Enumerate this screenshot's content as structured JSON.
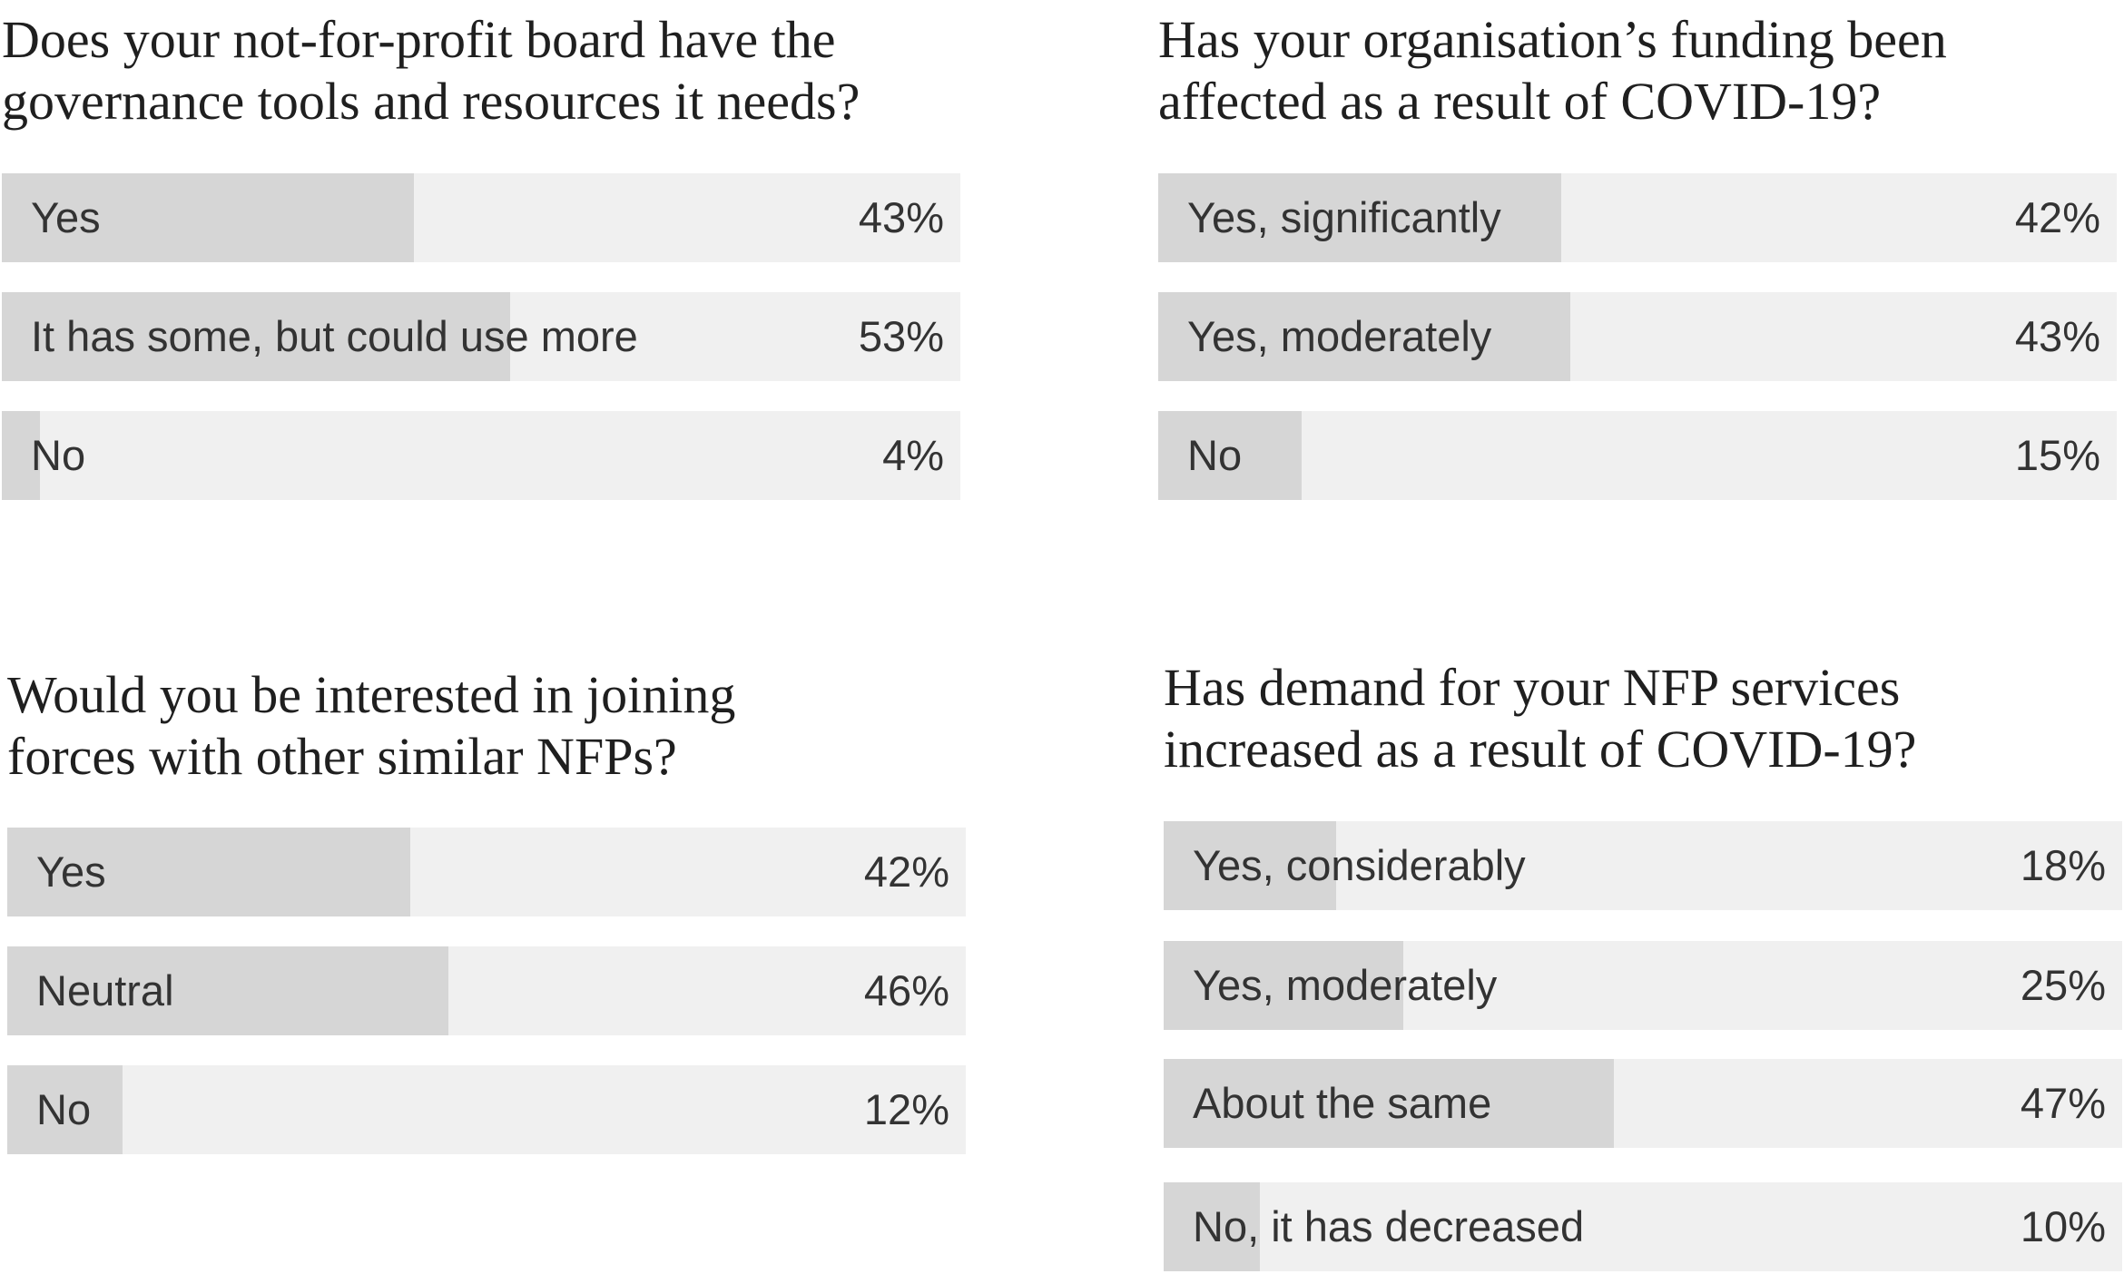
{
  "chart_data": [
    {
      "type": "bar",
      "orientation": "horizontal",
      "title": "Does your not-for-profit board have the\ngovernance tools and resources it needs?",
      "categories": [
        "Yes",
        "It has some, but could use more",
        "No"
      ],
      "values": [
        43,
        53,
        4
      ],
      "value_labels": [
        "43%",
        "53%",
        "4%"
      ],
      "xlim": [
        0,
        100
      ]
    },
    {
      "type": "bar",
      "orientation": "horizontal",
      "title": "Has your organisation’s funding been\naffected as a result of COVID-19?",
      "categories": [
        "Yes, significantly",
        "Yes, moderately",
        "No"
      ],
      "values": [
        42,
        43,
        15
      ],
      "value_labels": [
        "42%",
        "43%",
        "15%"
      ],
      "xlim": [
        0,
        100
      ]
    },
    {
      "type": "bar",
      "orientation": "horizontal",
      "title": "Would you be interested in joining\nforces with other similar NFPs?",
      "categories": [
        "Yes",
        "Neutral",
        "No"
      ],
      "values": [
        42,
        46,
        12
      ],
      "value_labels": [
        "42%",
        "46%",
        "12%"
      ],
      "xlim": [
        0,
        100
      ]
    },
    {
      "type": "bar",
      "orientation": "horizontal",
      "title": "Has demand for your NFP services\nincreased as a result of COVID-19?",
      "categories": [
        "Yes, considerably",
        "Yes, moderately",
        "About the same",
        "No, it has decreased"
      ],
      "values": [
        18,
        25,
        47,
        10
      ],
      "value_labels": [
        "18%",
        "25%",
        "47%",
        "10%"
      ],
      "xlim": [
        0,
        100
      ]
    }
  ],
  "colors": {
    "track": "#f0f0f0",
    "fill": "#d6d6d6",
    "text": "#333333",
    "question": "#1f1f1f"
  }
}
